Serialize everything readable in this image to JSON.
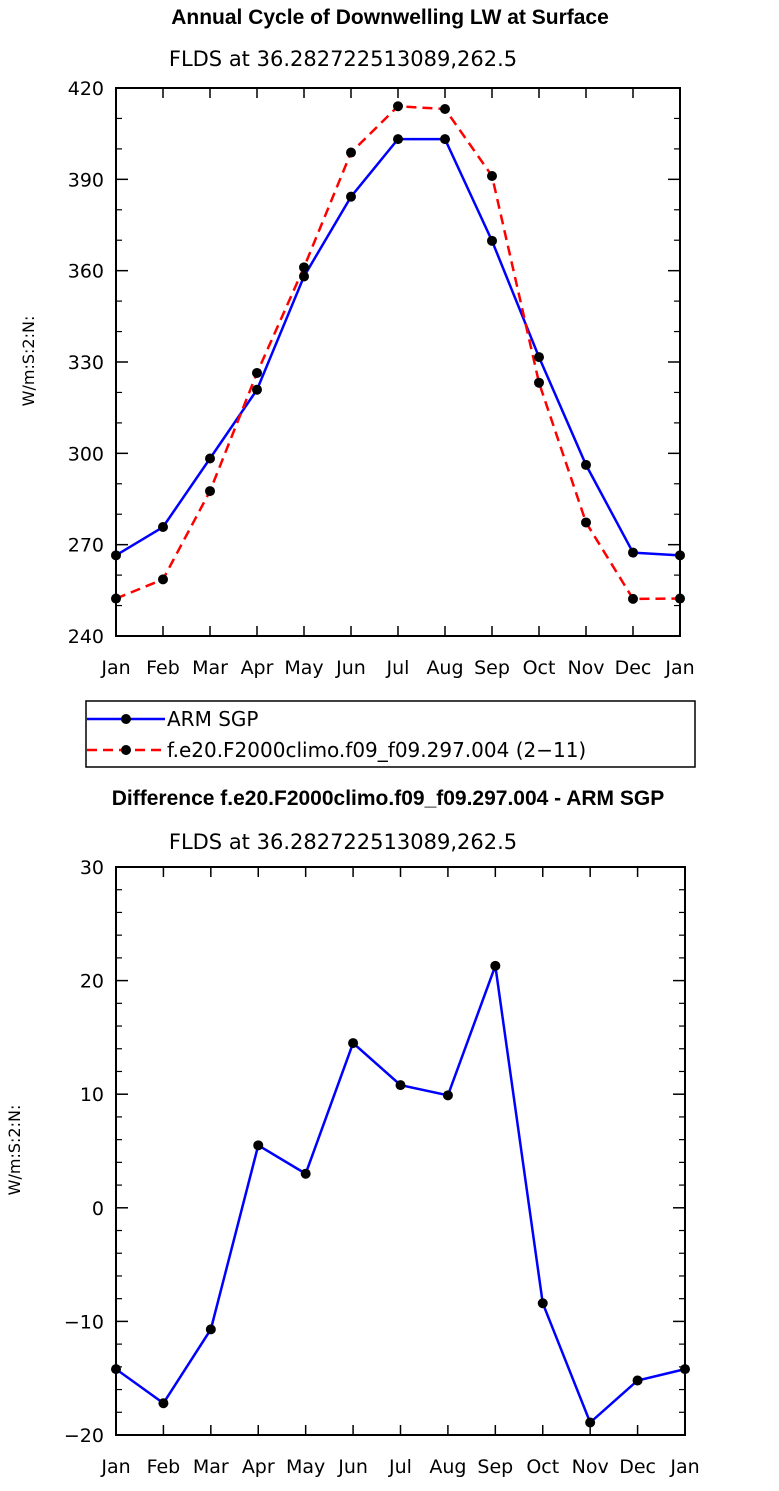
{
  "chart_data": [
    {
      "type": "line",
      "title": "Annual Cycle of Downwelling LW at Surface",
      "subtitle": "FLDS at 36.282722513089,262.5",
      "xlabel": "",
      "ylabel": "W/m:S:2:N:",
      "categories": [
        "Jan",
        "Feb",
        "Mar",
        "Apr",
        "May",
        "Jun",
        "Jul",
        "Aug",
        "Sep",
        "Oct",
        "Nov",
        "Dec",
        "Jan"
      ],
      "ylim": [
        240,
        420
      ],
      "yticks": [
        240,
        270,
        300,
        330,
        360,
        390,
        420
      ],
      "series": [
        {
          "name": "ARM SGP",
          "color": "#0000ff",
          "dash": "solid",
          "values": [
            266.5,
            275.8,
            298.3,
            320.9,
            358.1,
            384.3,
            403.2,
            403.2,
            369.8,
            331.6,
            296.2,
            267.4,
            266.5
          ]
        },
        {
          "name": "f.e20.F2000climo.f09_f09.297.004 (2−11)",
          "color": "#ff0000",
          "dash": "dashed",
          "values": [
            252.3,
            258.6,
            287.6,
            326.4,
            361.1,
            398.8,
            414.0,
            413.1,
            391.1,
            323.2,
            277.3,
            252.2,
            252.3
          ]
        }
      ],
      "legend": "bottom"
    },
    {
      "type": "line",
      "title": "Difference f.e20.F2000climo.f09_f09.297.004 - ARM SGP",
      "subtitle": "FLDS at 36.282722513089,262.5",
      "xlabel": "",
      "ylabel": "W/m:S:2:N:",
      "categories": [
        "Jan",
        "Feb",
        "Mar",
        "Apr",
        "May",
        "Jun",
        "Jul",
        "Aug",
        "Sep",
        "Oct",
        "Nov",
        "Dec",
        "Jan"
      ],
      "ylim": [
        -20,
        30
      ],
      "yticks": [
        -20,
        -10,
        0,
        10,
        20,
        30
      ],
      "series": [
        {
          "color": "#0000ff",
          "dash": "solid",
          "values": [
            -14.2,
            -17.2,
            -10.7,
            5.5,
            3.0,
            14.5,
            10.8,
            9.9,
            21.3,
            -8.4,
            -18.9,
            -15.2,
            -14.2
          ]
        }
      ]
    }
  ]
}
